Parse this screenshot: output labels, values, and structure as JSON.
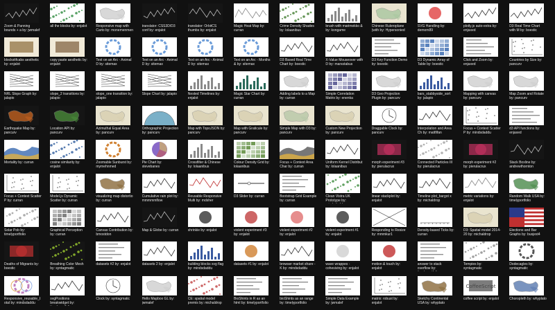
{
  "gallery": {
    "rows": [
      [
        {
          "caption": "Zoom & Panning bounds + a by: jwmalef",
          "style": "dark",
          "accent": "#5a5a5a"
        },
        {
          "caption": "all the blocks by: enjalot",
          "style": "green-dots",
          "accent": "#2c8a3c"
        },
        {
          "caption": "Responsive map with Carto by: monemenmen",
          "style": "map",
          "accent": "#cfcfcf"
        },
        {
          "caption": "translator: CSS3D/D3 conf by: enjalot",
          "style": "dark",
          "accent": "#444444"
        },
        {
          "caption": "translator: OrbitCS thumbs by: enjalot",
          "style": "dark",
          "accent": "#777777"
        },
        {
          "caption": "Magic Heat Map by: curran",
          "style": "lines",
          "accent": "#888888"
        },
        {
          "caption": "Crime Density Shades by: lolaanibus",
          "style": "dots",
          "accent": "#3d7a2a"
        },
        {
          "caption": "brush with marimekko & by: kongame",
          "style": "bars",
          "accent": "#8a8a8a"
        },
        {
          "caption": "Chinese Ruleroplane (with by: Hypersonied",
          "style": "beige",
          "accent": "#a9c7a0"
        },
        {
          "caption": "SVG Handling by: demom89",
          "style": "circle",
          "accent": "#e04040"
        },
        {
          "caption": "plotly.js auto-extra by: enjaxed",
          "style": "chart",
          "accent": "#333333"
        },
        {
          "caption": "D3 Real Time Chart with M by: boestic",
          "style": "chart",
          "accent": "#333333"
        }
      ],
      [
        {
          "caption": "blockstifcabs aesthetic by: enjalot",
          "style": "brown",
          "accent": "#8a6b3b"
        },
        {
          "caption": "copy paste aesthetic by: enjalot",
          "style": "brown",
          "accent": "#7a5b3b"
        },
        {
          "caption": "Text on an Arc - Animal D by: sitemax",
          "style": "ring",
          "accent": "#6a9bd8"
        },
        {
          "caption": "Text on an Arc - Animal D by: sitemax",
          "style": "ring",
          "accent": "#6a9bd8"
        },
        {
          "caption": "Text on an Arc - Animal D by: sitemax",
          "style": "ring",
          "accent": "#6a9bd8"
        },
        {
          "caption": "Text on an Arc - Months & by: sitemax",
          "style": "ring",
          "accent": "#6a9bd8"
        },
        {
          "caption": "D3 Based Real Time Chart by: boestic",
          "style": "chart",
          "accent": "#333333"
        },
        {
          "caption": "X-Value Mouseover with D by: marsstabus",
          "style": "chart",
          "accent": "#333333"
        },
        {
          "caption": "D3 Key Function Demo by: boestic",
          "style": "text",
          "accent": "#444444"
        },
        {
          "caption": "D3 Dynamic Array of Table by: boestic",
          "style": "table",
          "accent": "#3b6bb0"
        },
        {
          "caption": "Click and Zoom by: enjaxed",
          "style": "text",
          "accent": "#444444"
        },
        {
          "caption": "Countries by Size by: pancurv",
          "style": "scatter",
          "accent": "#555555"
        }
      ],
      [
        {
          "caption": "NRL Slope Graph by: jalapio",
          "style": "slope",
          "accent": "#333333"
        },
        {
          "caption": "slope_2 transitions by: jalapio",
          "style": "slope",
          "accent": "#333333"
        },
        {
          "caption": "slope_one transition by: jalapio",
          "style": "slope",
          "accent": "#333333"
        },
        {
          "caption": "Slope Chart by: jalapio",
          "style": "slope",
          "accent": "#333333"
        },
        {
          "caption": "Nested Timelines by: enjalot",
          "style": "bars",
          "accent": "#8a8a8a"
        },
        {
          "caption": "Magic Star Chart by: curran",
          "style": "bars",
          "accent": "#2a6a5a"
        },
        {
          "caption": "Adding labels to a Map by: curran",
          "style": "map",
          "accent": "#cfcfcf"
        },
        {
          "caption": "Simple Correlation Matrix by: enenka",
          "style": "grid",
          "accent": "#4a4a8a"
        },
        {
          "caption": "D3 Geo Projection Plugin by: pancurv",
          "style": "map",
          "accent": "#cfcfcf"
        },
        {
          "caption": "bars_stabbyside_sort by: jalapio",
          "style": "bars",
          "accent": "#3a5aa0"
        },
        {
          "caption": "Mapping with canvas by: pancurv",
          "style": "map",
          "accent": "#cfcfcf"
        },
        {
          "caption": "Map Zoom and Rotate by: pancurv",
          "style": "map",
          "accent": "#cfcfcf"
        }
      ],
      [
        {
          "caption": "Earthquake Map by: pancurv",
          "style": "dark-orange",
          "accent": "#c06020"
        },
        {
          "caption": "Location API by: pancurv",
          "style": "dark-green",
          "accent": "#4a8a3a"
        },
        {
          "caption": "Azimuthal Equal Area by: pancurv",
          "style": "beige",
          "accent": "#d8d0b0"
        },
        {
          "caption": "Orthographic Projection by: pancurv",
          "style": "globe",
          "accent": "#7ab0c8"
        },
        {
          "caption": "Map with TopoJSON by: pancurv",
          "style": "beige",
          "accent": "#d8d0b0"
        },
        {
          "caption": "Map with Graticule by: pancurv",
          "style": "beige",
          "accent": "#d8d0b0"
        },
        {
          "caption": "Simple Map with D3 by: pancurv",
          "style": "beige",
          "accent": "#b8c8a8"
        },
        {
          "caption": "Custom New Projection by: pancurv",
          "style": "beige",
          "accent": "#d8d0b0"
        },
        {
          "caption": "Draggable Clock by: pancurv",
          "style": "clock",
          "accent": "#333333"
        },
        {
          "caption": "Interpolation and Area Ch by: mattfifan",
          "style": "chart",
          "accent": "#333333"
        },
        {
          "caption": "Focus + Context Scatter P by: mindsdaddu",
          "style": "scatter",
          "accent": "#555555"
        },
        {
          "caption": "d3 API functions by: enjaxed",
          "style": "text",
          "accent": "#444444"
        }
      ],
      [
        {
          "caption": "Mortality by: curran",
          "style": "area",
          "accent": "#3a6ab0"
        },
        {
          "caption": "cosine similarity by: enjalot",
          "style": "dots",
          "accent": "#2c5a9c"
        },
        {
          "caption": "Zoomable Sunburst by: mymehnmed",
          "style": "ring",
          "accent": "#d08030"
        },
        {
          "caption": "Pie Chart by: stevebanes",
          "style": "pie",
          "accent": "#8a6ac8"
        },
        {
          "caption": "Crossfilter & Chinese by: lolaanibus",
          "style": "bars",
          "accent": "#8a8a8a"
        },
        {
          "caption": "Colour Density Grid by: lolaanibus",
          "style": "grid",
          "accent": "#5a8a3a"
        },
        {
          "caption": "Focus + Context Area Char by: curran",
          "style": "area",
          "accent": "#555555"
        },
        {
          "caption": "Uniform Kernel Distribut by: lolaanibus",
          "style": "chart",
          "accent": "#333333"
        },
        {
          "caption": "morph experiment #3 by: pierulacrux",
          "style": "dark-purple",
          "accent": "#c03060"
        },
        {
          "caption": "Connected Particles III by: pierulacrux",
          "style": "dots",
          "accent": "#a0a0a0"
        },
        {
          "caption": "morph experiment #2 by: pierulacrux",
          "style": "dark-purple",
          "accent": "#c03060"
        },
        {
          "caption": "Stack Boxline by: andrewthornton",
          "style": "dark",
          "accent": "#555555"
        }
      ],
      [
        {
          "caption": "Focus + Context Scatter P by: curran",
          "style": "scatter",
          "accent": "#555555"
        },
        {
          "caption": "Model.js Dynamic Scatter by: curran",
          "style": "scatter",
          "accent": "#555555"
        },
        {
          "caption": "visualizing map distortio by: curran",
          "style": "map",
          "accent": "#8a6a3a"
        },
        {
          "caption": "Cumulative rain plot by: mmmmmflow",
          "style": "chart",
          "accent": "#333333"
        },
        {
          "caption": "Reusable Responsive Multi by: mdsher",
          "style": "chart",
          "accent": "#c03030"
        },
        {
          "caption": "D3 Slider by: curran",
          "style": "slider",
          "accent": "#333333"
        },
        {
          "caption": "Bootstrap Grid Example by: curran",
          "style": "text",
          "accent": "#444444"
        },
        {
          "caption": "Clean Vistra UK Prototype by: mindsdaddu",
          "style": "green-dots",
          "accent": "#3a8a3a"
        },
        {
          "caption": "linear stackplot by: enjalot",
          "style": "chart",
          "accent": "#333333"
        },
        {
          "caption": "Timeline plot_bargot x by: michaldrop",
          "style": "chart",
          "accent": "#333333"
        },
        {
          "caption": "metric variations by: enjalot",
          "style": "lines",
          "accent": "#888888"
        },
        {
          "caption": "Random Walk USA by: timelyportfolio",
          "style": "map",
          "accent": "#4a8a4a"
        }
      ],
      [
        {
          "caption": "Solar Pob by: timelyportfolio",
          "style": "dots",
          "accent": "#999999"
        },
        {
          "caption": "Graphical Perception by: curran",
          "style": "grid",
          "accent": "#6a6a6a"
        },
        {
          "caption": "Canvas Contribution by: bmostdon",
          "style": "chart",
          "accent": "#333333"
        },
        {
          "caption": "Map & Globe by: curran",
          "style": "dark",
          "accent": "#ffffff"
        },
        {
          "caption": "shrinkie by: enjalot",
          "style": "circle",
          "accent": "#333333"
        },
        {
          "caption": "violent experiment #3 by: enjalot",
          "style": "circle",
          "accent": "#c04040"
        },
        {
          "caption": "violent experiment #2 by: enjalot",
          "style": "circle",
          "accent": "#e07070"
        },
        {
          "caption": "violent experiment #1 by: enjalot",
          "style": "circle",
          "accent": "#333333"
        },
        {
          "caption": "Responding to Resize by: mmmkur1",
          "style": "cross",
          "accent": "#333333"
        },
        {
          "caption": "Density-based Ticks by: curran",
          "style": "axis",
          "accent": "#333333"
        },
        {
          "caption": "D3: Spatial model 2014-20 by: michaldrop",
          "style": "beige",
          "accent": "#d8d0b0"
        },
        {
          "caption": "Elections and Bar Graphs by: busjest4",
          "style": "flag",
          "accent": "#2a3a8a"
        }
      ],
      [
        {
          "caption": "Deaths of Migrants by: boestic",
          "style": "dark-red",
          "accent": "#c03030"
        },
        {
          "caption": "Breathing Color Mesh by: syntagmatic",
          "style": "dark-glow",
          "accent": "#a0d030"
        },
        {
          "caption": "datasets #2 by: enjalot",
          "style": "text",
          "accent": "#444444"
        },
        {
          "caption": "datasets 2 by: enjalot",
          "style": "chart",
          "accent": "#333333"
        },
        {
          "caption": "building blocks svg flag by: mindsdaddu",
          "style": "bars",
          "accent": "#3a5aa0"
        },
        {
          "caption": "datasets #1 by: enjalot",
          "style": "circle",
          "accent": "#d08030"
        },
        {
          "caption": "browser market share - K by: mindsdaddu",
          "style": "chart",
          "accent": "#333333"
        },
        {
          "caption": "wave wrappes - cohesiving by: enjalot",
          "style": "circle",
          "accent": "#d0d0d0"
        },
        {
          "caption": "motion & touch by: enjalot",
          "style": "circle",
          "accent": "#c03030"
        },
        {
          "caption": "answer to stack overflow by: timelyportfolio",
          "style": "text",
          "accent": "#444444"
        },
        {
          "caption": "Tempies by: syntagmatic",
          "style": "dots",
          "accent": "#888888"
        },
        {
          "caption": "Dodecagles by: syntagmatic",
          "style": "ring",
          "accent": "#555555"
        }
      ],
      [
        {
          "caption": "Responsive_reusable_total by: mindsdaddu",
          "style": "rings",
          "accent": "#c080c0"
        },
        {
          "caption": "svgPositions breakwidget by: timelyportfolio",
          "style": "chart",
          "accent": "#333333"
        },
        {
          "caption": "Clock by: syntagmatic",
          "style": "clock",
          "accent": "#333333"
        },
        {
          "caption": "Hello Mapbox GL by: jwmalef",
          "style": "map",
          "accent": "#cfcfcf"
        },
        {
          "caption": "CE: spatial model premis by: michaldrop",
          "style": "dots",
          "accent": "#c04040"
        },
        {
          "caption": "BioShints in R as an html by: timelyportfolio",
          "style": "text",
          "accent": "#444444"
        },
        {
          "caption": "bioShints as an range by: timelyportfolio",
          "style": "text",
          "accent": "#444444"
        },
        {
          "caption": "Simple Data Example by: jwmalef",
          "style": "text",
          "accent": "#444444"
        },
        {
          "caption": "matrix: robust by: enjalot",
          "style": "scatter",
          "accent": "#555555"
        },
        {
          "caption": "Sketchy Continental USA by: whyplato",
          "style": "map",
          "accent": "#8a6a3a"
        },
        {
          "caption": "coffee script by: enjalot",
          "style": "logo",
          "accent": "#444444",
          "logo_text": "CoffeeScript"
        },
        {
          "caption": "Choropleth by: whyplato",
          "style": "map",
          "accent": "#5a7ab0"
        }
      ]
    ]
  }
}
